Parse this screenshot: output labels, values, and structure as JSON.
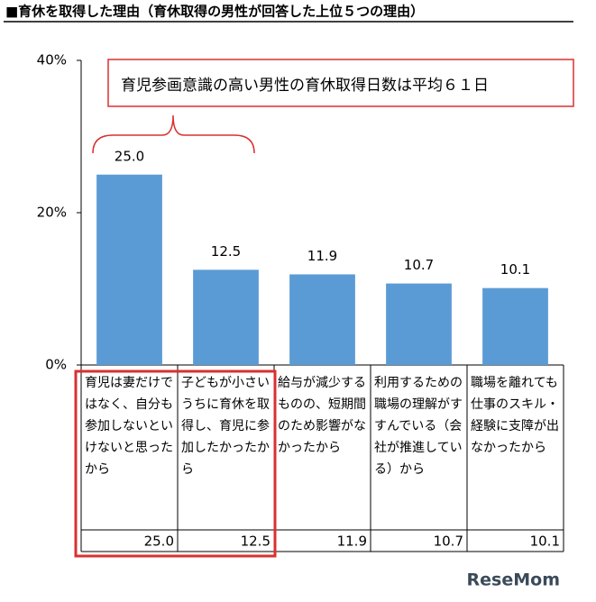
{
  "chart_data": {
    "type": "bar",
    "title": "■育休を取得した理由（育休取得の男性が回答した上位５つの理由）",
    "annotation": "育児参画意識の高い男性の育休取得日数は平均６１日",
    "categories": [
      "育児は妻だけではなく、自分も参加しないといけないと思ったから",
      "子どもが小さいうちに育休を取得し、育児に参加したかったから",
      "給与が減少するものの、短期間のため影響がなかったから",
      "利用するための職場の理解がすすんでいる（会社が推進している）から",
      "職場を離れても仕事のスキル・経験に支障が出なかったから"
    ],
    "values": [
      25,
      12.5,
      11.9,
      10.7,
      10.1
    ],
    "value_labels": [
      "25.0",
      "12.5",
      "11.9",
      "10.7",
      "10.1"
    ],
    "color": "#5b9bd5",
    "ylim": [
      0,
      40
    ],
    "yticks": [
      {
        "value": 0,
        "label": "0%"
      },
      {
        "value": 20,
        "label": "20%"
      },
      {
        "value": 40,
        "label": "40%"
      }
    ],
    "watermark": "ReseMom"
  }
}
